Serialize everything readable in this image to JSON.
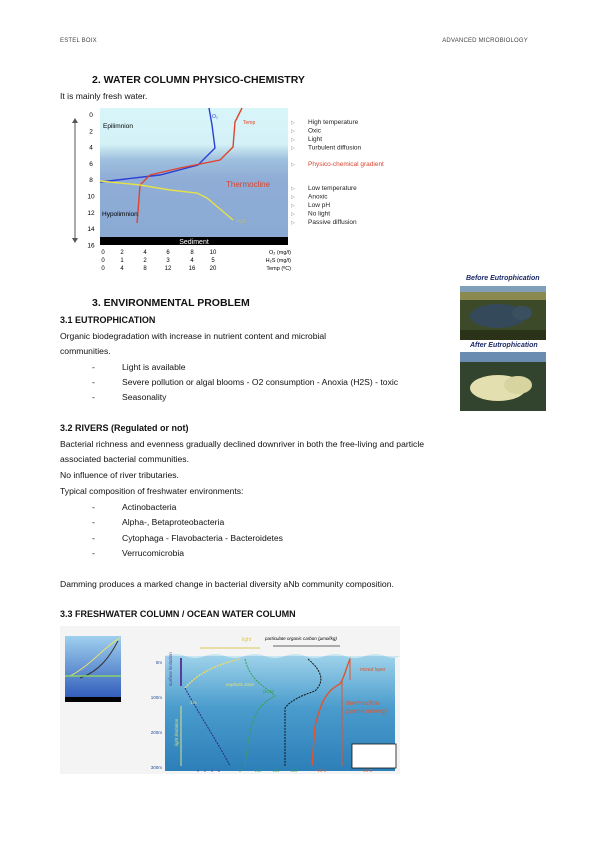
{
  "header": {
    "author": "ESTEL BOIX",
    "course": "ADVANCED MICROBIOLOGY"
  },
  "section2": {
    "title": "2.   WATER COLUMN PHYSICO-CHEMISTRY",
    "intro": "It is mainly fresh water.",
    "figure": {
      "depths": [
        "0",
        "2",
        "4",
        "6",
        "8",
        "10",
        "12",
        "14",
        "16"
      ],
      "layers": {
        "epilimnion": "Epilimnion",
        "hypolimnion": "Hypolimnion",
        "thermocline": "Thermocline",
        "sediment": "Sediment"
      },
      "curve_labels": {
        "o2": "O₂",
        "temp": "Temp",
        "h2s": "H₂S"
      },
      "axes": [
        {
          "ticks": [
            "0",
            "2",
            "4",
            "6",
            "8",
            "10"
          ],
          "unit": "O₂ (mg/l)"
        },
        {
          "ticks": [
            "0",
            "1",
            "2",
            "3",
            "4",
            "5"
          ],
          "unit": "H₂S (mg/l)"
        },
        {
          "ticks": [
            "0",
            "4",
            "8",
            "12",
            "16",
            "20"
          ],
          "unit": "Temp (ºC)"
        }
      ],
      "upper_traits": [
        "High temperature",
        "Oxic",
        "Light",
        "Turbulent diffusion"
      ],
      "gradient": "Physico-chemical gradient",
      "lower_traits": [
        "Low temperature",
        "Anoxic",
        "Low pH",
        "No light",
        "Passive diffusion"
      ],
      "colors": {
        "o2": "#2a3fd6",
        "temp": "#e0442c",
        "h2s": "#e6e04a",
        "upper_water": "#d8f6fa",
        "lower_water": "#8fadd6",
        "sediment": "#000000",
        "thermocline_label": "#d9452f"
      }
    }
  },
  "section3": {
    "title": "3.   ENVIRONMENTAL PROBLEM",
    "eutro": {
      "title": "3.1 EUTROPHICATION",
      "text": [
        "Organic biodegradation with increase in nutrient content and microbial",
        "communities."
      ],
      "bullets": [
        "Light is available",
        "Severe pollution or algal blooms - O2 consumption - Anoxia (H2S) - toxic",
        "Seasonality"
      ],
      "images": {
        "before": "Before Eutrophication",
        "after": "After Eutrophication"
      }
    },
    "rivers": {
      "title": "3.2 RIVERS (Regulated or not)",
      "text": [
        "Bacterial richness and evenness gradually declined downriver in both the free-living and particle",
        "associated bacterial communities.",
        "No influence of river tributaries.",
        "Typical composition of freshwater environments:"
      ],
      "bullets": [
        "Actinobacteria",
        "Alpha-, Betaproteobacteria",
        "Cytophaga - Flavobacteria - Bacteroidetes",
        "Verrucomicrobia"
      ],
      "closing": "Damming produces a marked change in bacterial diversity aNb community composition."
    },
    "columns": {
      "title": "3.3 FRESHWATER COLUMN / OCEAN WATER COLUMN",
      "figure": {
        "top_labels": {
          "light": "light",
          "poc": "particulate organic carbon (µmol/kg)"
        },
        "depths": [
          "0m",
          "100m",
          "200m",
          "300m"
        ],
        "annotations": {
          "mixed": "mixed layer",
          "thermo": "thermocline (some mixing)",
          "euphotic": "euphotic zone",
          "dom": "DOM",
          "one_pct": "1%",
          "light_lim": "light limitation",
          "surf_lim": "surface limitation"
        },
        "bottom_ticks": {
          "a": [
            "0",
            "2",
            "4",
            "6"
          ],
          "b": [
            "0",
            "100",
            "200",
            "300"
          ],
          "c": [
            "15°C",
            "20°C"
          ]
        }
      }
    }
  }
}
